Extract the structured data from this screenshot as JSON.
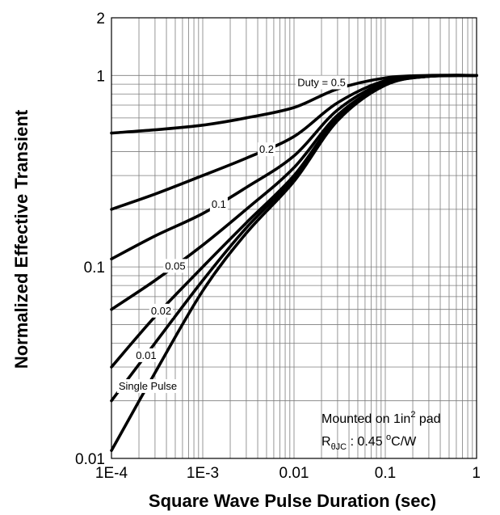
{
  "chart_data": {
    "type": "line",
    "x_scale": "log",
    "y_scale": "log",
    "xlim": [
      0.0001,
      1
    ],
    "ylim": [
      0.01,
      2
    ],
    "grid": true,
    "xlabel": "Square Wave Pulse Duration (sec)",
    "ylabel": "Normalized Effective Transient",
    "x_ticks": [
      {
        "value": 0.0001,
        "label": "1E-4"
      },
      {
        "value": 0.001,
        "label": "1E-3"
      },
      {
        "value": 0.01,
        "label": "0.01"
      },
      {
        "value": 0.1,
        "label": "0.1"
      },
      {
        "value": 1,
        "label": "1"
      }
    ],
    "y_ticks": [
      {
        "value": 0.01,
        "label": "0.01"
      },
      {
        "value": 0.1,
        "label": "0.1"
      },
      {
        "value": 1,
        "label": "1"
      },
      {
        "value": 2,
        "label": "2"
      }
    ],
    "series": [
      {
        "name": "Duty = 0.5",
        "label_at": 0.02,
        "points": [
          [
            0.0001,
            0.5
          ],
          [
            0.0003,
            0.52
          ],
          [
            0.001,
            0.55
          ],
          [
            0.003,
            0.6
          ],
          [
            0.01,
            0.68
          ],
          [
            0.03,
            0.85
          ],
          [
            0.1,
            0.97
          ],
          [
            0.3,
            1.0
          ],
          [
            1,
            1.0
          ]
        ]
      },
      {
        "name": "0.2",
        "label_at": 0.005,
        "points": [
          [
            0.0001,
            0.2
          ],
          [
            0.0003,
            0.24
          ],
          [
            0.001,
            0.3
          ],
          [
            0.003,
            0.37
          ],
          [
            0.01,
            0.48
          ],
          [
            0.03,
            0.72
          ],
          [
            0.1,
            0.94
          ],
          [
            0.3,
            0.99
          ],
          [
            1,
            1.0
          ]
        ]
      },
      {
        "name": "0.1",
        "label_at": 0.0015,
        "points": [
          [
            0.0001,
            0.11
          ],
          [
            0.0003,
            0.145
          ],
          [
            0.001,
            0.19
          ],
          [
            0.003,
            0.26
          ],
          [
            0.01,
            0.38
          ],
          [
            0.03,
            0.66
          ],
          [
            0.1,
            0.92
          ],
          [
            0.3,
            0.99
          ],
          [
            1,
            1.0
          ]
        ]
      },
      {
        "name": "0.05",
        "label_at": 0.0005,
        "points": [
          [
            0.0001,
            0.06
          ],
          [
            0.0003,
            0.085
          ],
          [
            0.001,
            0.13
          ],
          [
            0.003,
            0.2
          ],
          [
            0.01,
            0.33
          ],
          [
            0.03,
            0.62
          ],
          [
            0.1,
            0.9
          ],
          [
            0.3,
            0.99
          ],
          [
            1,
            1.0
          ]
        ]
      },
      {
        "name": "0.02",
        "label_at": 0.00035,
        "points": [
          [
            0.0001,
            0.03
          ],
          [
            0.0003,
            0.055
          ],
          [
            0.001,
            0.1
          ],
          [
            0.003,
            0.17
          ],
          [
            0.01,
            0.3
          ],
          [
            0.03,
            0.6
          ],
          [
            0.1,
            0.9
          ],
          [
            0.3,
            0.99
          ],
          [
            1,
            1.0
          ]
        ]
      },
      {
        "name": "0.01",
        "label_at": 0.00024,
        "points": [
          [
            0.0001,
            0.02
          ],
          [
            0.0003,
            0.04
          ],
          [
            0.001,
            0.085
          ],
          [
            0.003,
            0.16
          ],
          [
            0.01,
            0.29
          ],
          [
            0.03,
            0.59
          ],
          [
            0.1,
            0.89
          ],
          [
            0.3,
            0.99
          ],
          [
            1,
            1.0
          ]
        ]
      },
      {
        "name": "Single Pulse",
        "label_at": 0.00025,
        "points": [
          [
            0.0001,
            0.011
          ],
          [
            0.0003,
            0.028
          ],
          [
            0.001,
            0.075
          ],
          [
            0.003,
            0.15
          ],
          [
            0.01,
            0.28
          ],
          [
            0.03,
            0.58
          ],
          [
            0.1,
            0.89
          ],
          [
            0.3,
            0.99
          ],
          [
            1,
            1.0
          ]
        ]
      }
    ],
    "annotations": {
      "line1": "Mounted on 1in",
      "line1_sup": "2",
      "line1_tail": " pad",
      "line2_symbol": "R",
      "line2_sub": "θJC",
      "line2_value": " : 0.45 ",
      "line2_deg": "o",
      "line2_unit": "C/W"
    }
  }
}
